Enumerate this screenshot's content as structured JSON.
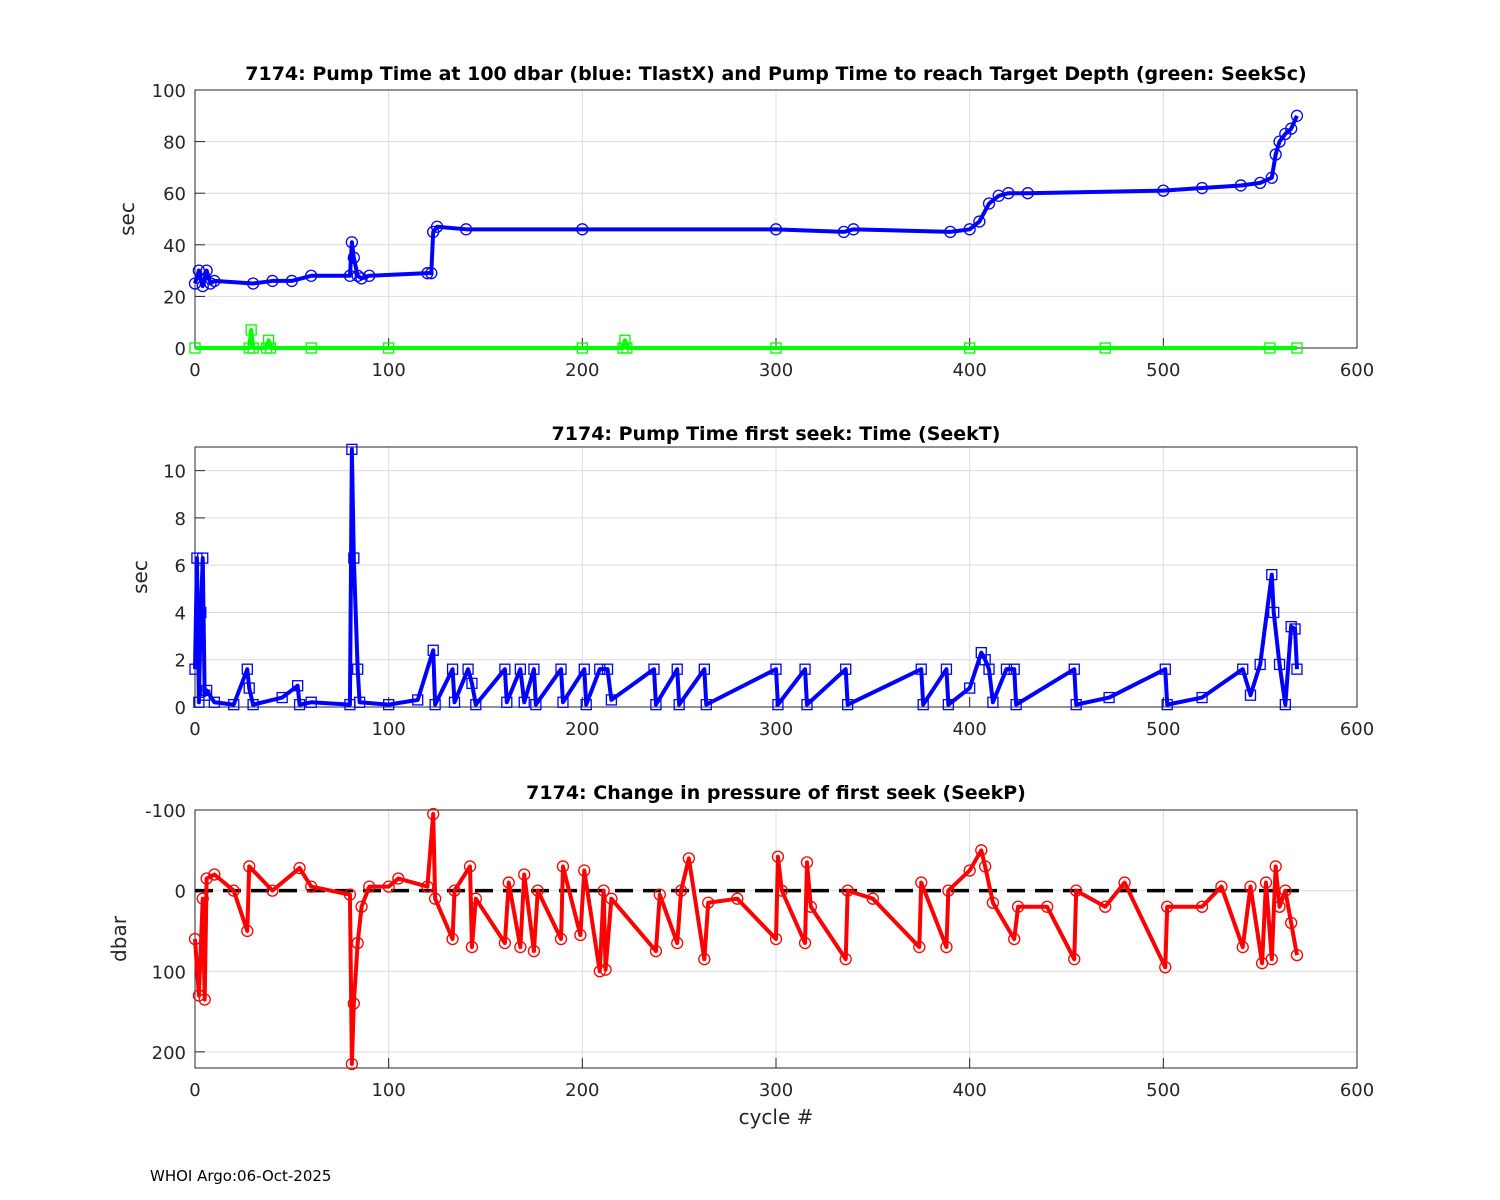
{
  "chart_data": [
    {
      "type": "line",
      "title": "7174:  Pump Time at 100 dbar (blue: TlastX) and Pump Time to reach Target Depth (green: SeekSc)",
      "xlabel": "",
      "ylabel": "sec",
      "xlim": [
        0,
        600
      ],
      "ylim": [
        0,
        100
      ],
      "xticks": [
        0,
        100,
        200,
        300,
        400,
        500,
        600
      ],
      "yticks": [
        0,
        20,
        40,
        60,
        80,
        100
      ],
      "grid": true,
      "series": [
        {
          "name": "TlastX",
          "color": "#0000ff",
          "marker": "circle",
          "x": [
            0,
            2,
            4,
            6,
            8,
            10,
            30,
            40,
            50,
            60,
            80,
            81,
            82,
            84,
            86,
            90,
            120,
            122,
            123,
            125,
            140,
            200,
            300,
            335,
            340,
            390,
            400,
            405,
            410,
            415,
            420,
            430,
            500,
            520,
            540,
            550,
            556,
            558,
            560,
            563,
            566,
            569
          ],
          "y": [
            25,
            30,
            24,
            30,
            25,
            26,
            25,
            26,
            26,
            28,
            28,
            41,
            35,
            28,
            27,
            28,
            29,
            29,
            45,
            47,
            46,
            46,
            46,
            45,
            46,
            45,
            46,
            49,
            56,
            59,
            60,
            60,
            61,
            62,
            63,
            64,
            66,
            75,
            80,
            83,
            85,
            90
          ]
        },
        {
          "name": "SeekSc",
          "color": "#00ff00",
          "marker": "square",
          "x": [
            0,
            28,
            29,
            30,
            37,
            38,
            39,
            60,
            100,
            200,
            221,
            222,
            223,
            300,
            400,
            470,
            555,
            569
          ],
          "y": [
            0,
            0,
            7,
            0,
            0,
            3,
            0,
            0,
            0,
            0,
            0,
            3,
            0,
            0,
            0,
            0,
            0,
            0
          ]
        }
      ]
    },
    {
      "type": "line",
      "title": "7174: Pump Time first seek: Time (SeekT)",
      "xlabel": "",
      "ylabel": "sec",
      "xlim": [
        0,
        600
      ],
      "ylim": [
        0,
        11
      ],
      "xticks": [
        0,
        100,
        200,
        300,
        400,
        500,
        600
      ],
      "yticks": [
        0,
        2,
        4,
        6,
        8,
        10
      ],
      "grid": true,
      "series": [
        {
          "name": "SeekT",
          "color": "#0000ff",
          "marker": "square",
          "x": [
            0,
            1,
            2,
            3,
            4,
            5,
            6,
            10,
            20,
            27,
            28,
            30,
            45,
            53,
            54,
            60,
            80,
            81,
            82,
            84,
            85,
            100,
            115,
            123,
            124,
            133,
            134,
            141,
            143,
            145,
            160,
            161,
            168,
            170,
            175,
            176,
            189,
            190,
            201,
            202,
            209,
            213,
            215,
            237,
            238,
            249,
            250,
            263,
            264,
            300,
            301,
            315,
            316,
            336,
            337,
            375,
            376,
            388,
            389,
            400,
            406,
            408,
            410,
            412,
            419,
            423,
            424,
            454,
            455,
            472,
            501,
            502,
            520,
            541,
            545,
            550,
            556,
            557,
            560,
            563,
            566,
            568,
            569
          ],
          "y": [
            1.6,
            6.3,
            0.2,
            4,
            6.3,
            0.5,
            0.7,
            0.2,
            0.1,
            1.6,
            0.8,
            0.1,
            0.4,
            0.9,
            0.1,
            0.2,
            0.1,
            10.9,
            6.3,
            1.6,
            0.2,
            0.1,
            0.3,
            2.4,
            0.1,
            1.6,
            0.2,
            1.6,
            1,
            0.1,
            1.6,
            0.2,
            1.6,
            0.2,
            1.6,
            0.1,
            1.6,
            0.2,
            1.6,
            0.1,
            1.6,
            1.6,
            0.3,
            1.6,
            0.1,
            1.6,
            0.1,
            1.6,
            0.1,
            1.6,
            0.1,
            1.6,
            0.1,
            1.6,
            0.1,
            1.6,
            0.1,
            1.6,
            0.1,
            0.8,
            2.3,
            2,
            1.6,
            0.2,
            1.6,
            1.6,
            0.1,
            1.6,
            0.1,
            0.4,
            1.6,
            0.1,
            0.4,
            1.6,
            0.5,
            1.8,
            5.6,
            4,
            1.8,
            0.1,
            3.4,
            3.3,
            1.6
          ]
        }
      ]
    },
    {
      "type": "line",
      "title": "7174: Change in pressure of first seek (SeekP)",
      "xlabel": "cycle #",
      "ylabel": "dbar",
      "xlim": [
        0,
        600
      ],
      "ylim": [
        -100,
        220
      ],
      "y_reversed": true,
      "xticks": [
        0,
        100,
        200,
        300,
        400,
        500,
        600
      ],
      "yticks": [
        -100,
        0,
        100,
        200
      ],
      "grid": true,
      "reference_line": {
        "y": 0,
        "style": "dashed",
        "color": "#000000"
      },
      "series": [
        {
          "name": "SeekP",
          "color": "#ff0000",
          "marker": "circle",
          "x": [
            0,
            2,
            4,
            5,
            6,
            10,
            20,
            27,
            28,
            40,
            54,
            60,
            80,
            81,
            82,
            84,
            86,
            90,
            100,
            105,
            120,
            123,
            124,
            133,
            134,
            142,
            143,
            145,
            160,
            162,
            168,
            170,
            175,
            177,
            189,
            190,
            199,
            201,
            209,
            211,
            212,
            215,
            238,
            240,
            249,
            251,
            255,
            263,
            265,
            280,
            300,
            301,
            303,
            315,
            316,
            318,
            336,
            337,
            350,
            374,
            375,
            388,
            389,
            400,
            406,
            408,
            412,
            423,
            425,
            440,
            454,
            455,
            470,
            480,
            501,
            502,
            520,
            530,
            541,
            545,
            551,
            553,
            556,
            558,
            560,
            563,
            566,
            569
          ],
          "y": [
            60,
            130,
            10,
            135,
            -15,
            -20,
            0,
            50,
            -30,
            0,
            -28,
            -5,
            5,
            215,
            140,
            65,
            20,
            -5,
            -5,
            -15,
            -5,
            -95,
            10,
            60,
            0,
            -30,
            70,
            10,
            65,
            -10,
            70,
            -20,
            75,
            0,
            60,
            -30,
            55,
            -25,
            100,
            0,
            98,
            10,
            75,
            5,
            65,
            0,
            -40,
            85,
            15,
            10,
            60,
            -42,
            0,
            65,
            -35,
            20,
            85,
            0,
            10,
            70,
            -10,
            70,
            0,
            -25,
            -50,
            -30,
            15,
            60,
            20,
            20,
            85,
            0,
            20,
            -10,
            95,
            20,
            20,
            -5,
            70,
            -5,
            90,
            -10,
            85,
            -30,
            20,
            0,
            40,
            80
          ]
        }
      ]
    }
  ],
  "footer": "WHOI Argo:06-Oct-2025"
}
